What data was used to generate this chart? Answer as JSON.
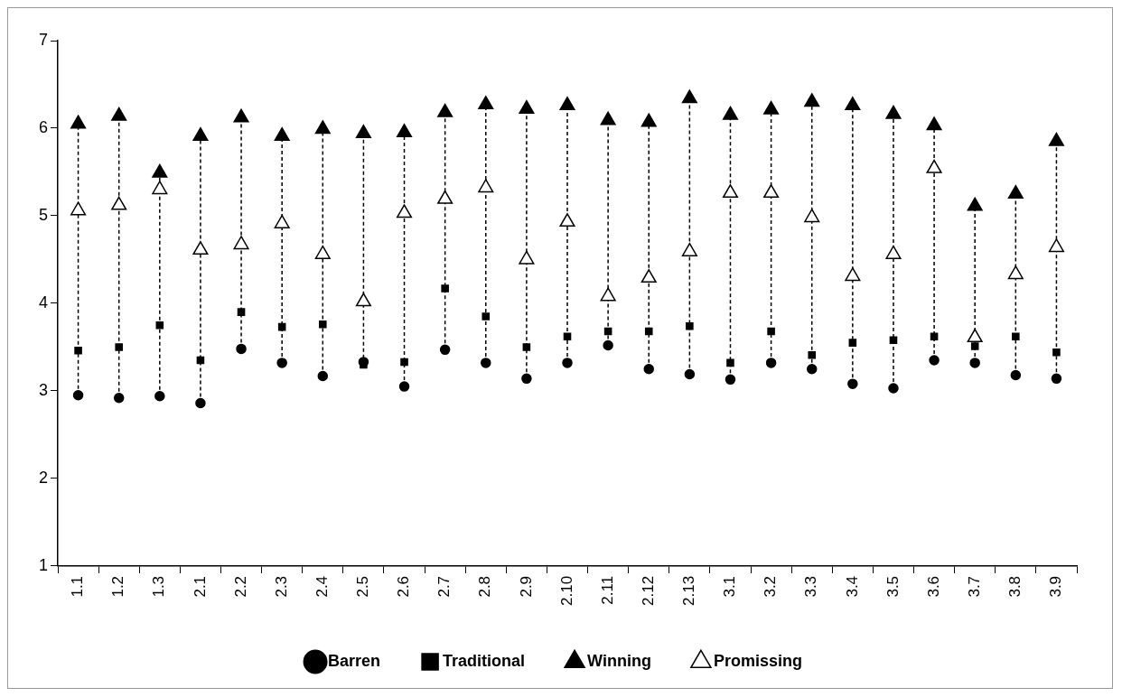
{
  "chart_data": {
    "type": "scatter",
    "categories": [
      "1.1",
      "1.2",
      "1.3",
      "2.1",
      "2.2",
      "2.3",
      "2.4",
      "2.5",
      "2.6",
      "2.7",
      "2.8",
      "2.9",
      "2.10",
      "2.11",
      "2.12",
      "2.13",
      "3.1",
      "3.2",
      "3.3",
      "3.4",
      "3.5",
      "3.6",
      "3.7",
      "3.8",
      "3.9"
    ],
    "series": [
      {
        "name": "Barren",
        "color": "#000000",
        "marker": "circle",
        "values": [
          2.95,
          2.92,
          2.94,
          2.86,
          3.48,
          3.32,
          3.17,
          3.33,
          3.05,
          3.47,
          3.32,
          3.14,
          3.32,
          3.52,
          3.25,
          3.19,
          3.13,
          3.32,
          3.25,
          3.08,
          3.03,
          3.35,
          3.32,
          3.18,
          3.14
        ]
      },
      {
        "name": "Traditional",
        "color": "#000000",
        "marker": "square",
        "values": [
          3.46,
          3.5,
          3.75,
          3.35,
          3.9,
          3.73,
          3.76,
          3.3,
          3.33,
          4.17,
          3.85,
          3.5,
          3.62,
          3.68,
          3.68,
          3.74,
          3.32,
          3.68,
          3.41,
          3.55,
          3.58,
          3.62,
          3.51,
          3.62,
          3.44
        ]
      },
      {
        "name": "Winning",
        "color": "#000000",
        "marker": "triangle",
        "values": [
          6.05,
          6.14,
          5.49,
          5.91,
          6.12,
          5.91,
          5.99,
          5.94,
          5.95,
          6.18,
          6.27,
          6.22,
          6.26,
          6.09,
          6.07,
          6.34,
          6.15,
          6.21,
          6.3,
          6.26,
          6.16,
          6.03,
          5.11,
          5.25,
          5.85
        ]
      },
      {
        "name": "Promissing",
        "color": "#ffffff",
        "marker": "triangle",
        "values": [
          5.06,
          5.12,
          5.3,
          4.61,
          4.67,
          4.91,
          4.56,
          4.02,
          5.03,
          5.19,
          5.32,
          4.5,
          4.93,
          4.08,
          4.29,
          4.59,
          5.26,
          5.26,
          4.98,
          4.31,
          4.56,
          5.54,
          3.61,
          4.33,
          4.64
        ]
      }
    ],
    "ylim": [
      1,
      7
    ],
    "yticks": [
      1,
      2,
      3,
      4,
      5,
      6,
      7
    ],
    "grid": false,
    "legend": "bottom",
    "line_style": "dashed"
  }
}
